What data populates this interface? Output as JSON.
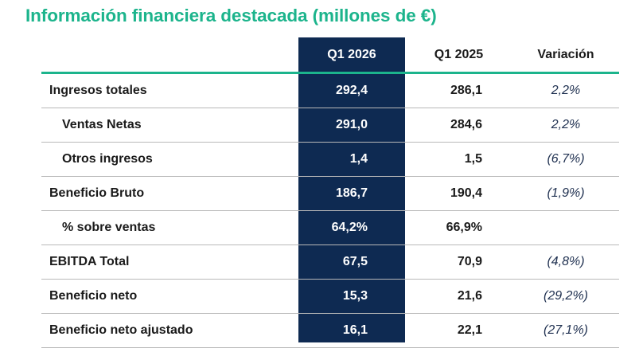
{
  "title": "Información financiera destacada (millones de €)",
  "colors": {
    "accent": "#1cb48c",
    "highlight_column": "#0e2a52"
  },
  "table": {
    "headers": [
      "",
      "Q1 2026",
      "Q1 2025",
      "Variación"
    ],
    "rows": [
      {
        "label": "Ingresos totales",
        "q1_2026": "292,4",
        "q1_2025": "286,1",
        "variation": "2,2%",
        "indent": false
      },
      {
        "label": "Ventas Netas",
        "q1_2026": "291,0",
        "q1_2025": "284,6",
        "variation": "2,2%",
        "indent": true
      },
      {
        "label": "Otros ingresos",
        "q1_2026": "1,4",
        "q1_2025": "1,5",
        "variation": "(6,7%)",
        "indent": true
      },
      {
        "label": "Beneficio Bruto",
        "q1_2026": "186,7",
        "q1_2025": "190,4",
        "variation": "(1,9%)",
        "indent": false
      },
      {
        "label": "% sobre ventas",
        "q1_2026": "64,2%",
        "q1_2025": "66,9%",
        "variation": "",
        "indent": true
      },
      {
        "label": "EBITDA Total",
        "q1_2026": "67,5",
        "q1_2025": "70,9",
        "variation": "(4,8%)",
        "indent": false
      },
      {
        "label": "Beneficio neto",
        "q1_2026": "15,3",
        "q1_2025": "21,6",
        "variation": "(29,2%)",
        "indent": false
      },
      {
        "label": "Beneficio neto ajustado",
        "q1_2026": "16,1",
        "q1_2025": "22,1",
        "variation": "(27,1%)",
        "indent": false
      }
    ]
  }
}
